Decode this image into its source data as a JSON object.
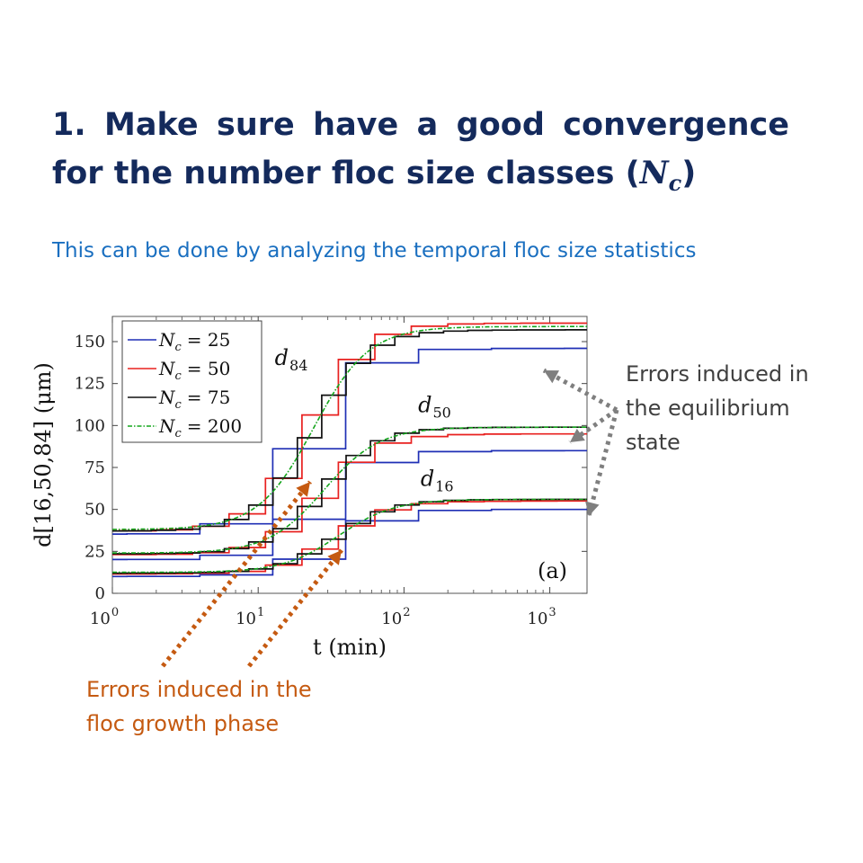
{
  "title": {
    "line1": "1. Make sure have a good convergence",
    "line2_prefix": "for the number floc size classes (",
    "line2_math": "N",
    "line2_sub": "c",
    "line2_suffix": ")"
  },
  "subtitle": "This can be done by analyzing the temporal floc size statistics",
  "annotations": {
    "equilibrium": "Errors induced in\nthe equilibrium\nstate",
    "growth": "Errors induced in the\nfloc growth phase"
  },
  "colors": {
    "title": "#142a5c",
    "subtitle": "#1a6fc0",
    "gray_note": "#404040",
    "orange_note": "#c55a11",
    "gray_arrow": "#7f7f7f",
    "orange_arrow": "#c55a11"
  },
  "chart_data": {
    "type": "line",
    "xscale": "log",
    "xlim": [
      1,
      1800
    ],
    "ylim": [
      0,
      165
    ],
    "xlabel": "t (min)",
    "ylabel": "d[16,50,84] (μm)",
    "xticks": [
      1,
      10,
      100,
      1000
    ],
    "xtick_base": "10",
    "xtick_exps": [
      "0",
      "1",
      "2",
      "3"
    ],
    "yticks": [
      0,
      25,
      50,
      75,
      100,
      125,
      150
    ],
    "panel_label": "(a)",
    "legend_position": "top-left",
    "curve_labels": [
      {
        "base": "d",
        "sub": "84",
        "t": 13,
        "d": 136
      },
      {
        "base": "d",
        "sub": "50",
        "t": 125,
        "d": 108
      },
      {
        "base": "d",
        "sub": "16",
        "t": 130,
        "d": 64
      }
    ],
    "series": [
      {
        "name": "Nc = 25",
        "legend_lhs": "N",
        "legend_sub": "c",
        "legend_rhs": "= 25",
        "color": "#1f2fb5",
        "dash": false,
        "step": 0.5,
        "offset": 0.6,
        "d84": {
          "y0": 35,
          "yeq": 146
        },
        "d50": {
          "y0": 20,
          "yeq": 85
        },
        "d16": {
          "y0": 10,
          "yeq": 50
        }
      },
      {
        "name": "Nc = 50",
        "legend_lhs": "N",
        "legend_sub": "c",
        "legend_rhs": "= 50",
        "color": "#e8201f",
        "dash": false,
        "step": 0.25,
        "offset": 0.3,
        "d84": {
          "y0": 37,
          "yeq": 161
        },
        "d50": {
          "y0": 23,
          "yeq": 95
        },
        "d16": {
          "y0": 11.5,
          "yeq": 55
        }
      },
      {
        "name": "Nc = 75",
        "legend_lhs": "N",
        "legend_sub": "c",
        "legend_rhs": "= 75",
        "color": "#111111",
        "dash": false,
        "step": 0.167,
        "offset": 0.1,
        "d84": {
          "y0": 37,
          "yeq": 157
        },
        "d50": {
          "y0": 23.5,
          "yeq": 99
        },
        "d16": {
          "y0": 12,
          "yeq": 56
        }
      },
      {
        "name": "Nc = 200",
        "legend_lhs": "N",
        "legend_sub": "c",
        "legend_rhs": "= 200",
        "color": "#14a51c",
        "dash": true,
        "step": 0,
        "offset": 0,
        "d84": {
          "y0": 38,
          "yeq": 159
        },
        "d50": {
          "y0": 24,
          "yeq": 99
        },
        "d16": {
          "y0": 12.5,
          "yeq": 56
        }
      }
    ]
  }
}
